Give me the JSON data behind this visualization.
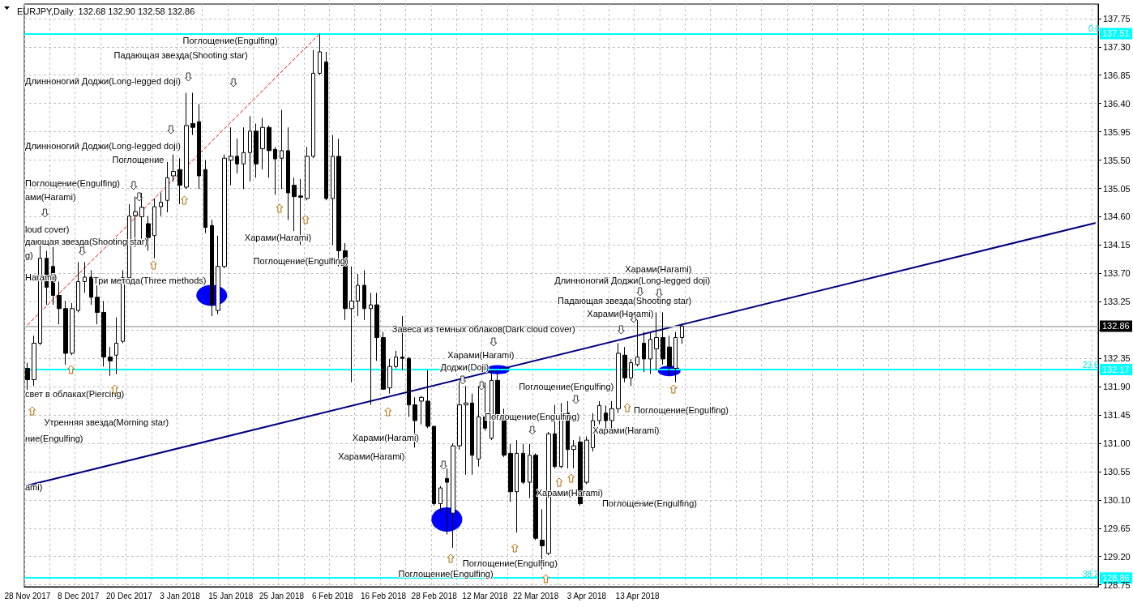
{
  "chart_data": {
    "type": "candlestick",
    "title": "EURJPY,Daily  132.68 132.90 132.58 132.86",
    "categories": [
      "28 Nov 2017",
      null,
      null,
      null,
      null,
      null,
      null,
      null,
      "8 Dec 2017",
      null,
      null,
      null,
      null,
      null,
      null,
      null,
      "20 Dec 2017",
      null,
      null,
      null,
      null,
      null,
      null,
      null,
      "3 Jan 2018",
      null,
      null,
      null,
      null,
      null,
      null,
      null,
      "15 Jan 2018",
      null,
      null,
      null,
      null,
      null,
      null,
      null,
      "25 Jan 2018",
      null,
      null,
      null,
      null,
      null,
      null,
      null,
      "6 Feb 2018",
      null,
      null,
      null,
      null,
      null,
      null,
      null,
      "16 Feb 2018",
      null,
      null,
      null,
      null,
      null,
      null,
      null,
      "28 Feb 2018",
      null,
      null,
      null,
      null,
      null,
      null,
      null,
      "12 Mar 2018",
      null,
      null,
      null,
      null,
      null,
      null,
      null,
      "22 Mar 2018",
      null,
      null,
      null,
      null,
      null,
      null,
      null,
      "3 Apr 2018",
      null,
      null,
      null,
      null,
      null,
      null,
      null,
      "13 Apr 2018",
      null,
      null,
      null,
      null,
      null,
      null,
      null,
      null,
      null,
      null,
      null,
      null,
      null,
      null,
      null,
      null,
      null,
      null,
      null,
      null,
      null,
      null,
      null,
      null,
      null,
      null,
      null,
      null,
      null,
      null,
      null,
      null,
      null,
      null,
      null,
      null,
      null,
      null,
      null,
      null,
      null,
      null,
      null,
      null,
      null,
      null,
      null,
      null,
      null,
      null,
      null,
      null,
      null,
      null,
      null,
      null,
      null,
      null,
      null,
      null,
      null,
      null,
      null,
      null,
      null,
      null,
      null,
      null,
      null,
      null,
      null,
      null
    ],
    "ohlc": [
      [
        132.19,
        132.28,
        131.85,
        132.01
      ],
      [
        132.01,
        132.71,
        131.91,
        132.59
      ],
      [
        132.59,
        134.18,
        132.56,
        133.94
      ],
      [
        133.94,
        134.06,
        133.2,
        133.48
      ],
      [
        133.81,
        134.12,
        133.2,
        133.35
      ],
      [
        133.35,
        133.57,
        132.89,
        133.14
      ],
      [
        133.14,
        133.26,
        132.25,
        132.43
      ],
      [
        132.43,
        133.23,
        132.4,
        133.14
      ],
      [
        133.11,
        133.88,
        133.08,
        133.57
      ],
      [
        133.57,
        133.88,
        133.39,
        133.64
      ],
      [
        133.64,
        133.75,
        133.2,
        133.32
      ],
      [
        133.32,
        133.51,
        132.89,
        133.08
      ],
      [
        133.08,
        133.26,
        132.22,
        132.37
      ],
      [
        132.37,
        132.53,
        132.07,
        132.31
      ],
      [
        132.4,
        133.0,
        132.1,
        132.59
      ],
      [
        132.62,
        133.75,
        132.59,
        133.63
      ],
      [
        133.63,
        134.8,
        133.63,
        134.61
      ],
      [
        134.62,
        134.92,
        134.12,
        134.68
      ],
      [
        134.6,
        134.98,
        134.25,
        134.75
      ],
      [
        134.49,
        134.61,
        134.06,
        134.27
      ],
      [
        134.3,
        134.89,
        133.94,
        134.76
      ],
      [
        134.76,
        134.98,
        134.61,
        134.83
      ],
      [
        134.86,
        135.47,
        134.67,
        135.22
      ],
      [
        135.25,
        135.59,
        135.16,
        135.32
      ],
      [
        135.35,
        135.53,
        134.8,
        135.1
      ],
      [
        135.07,
        136.57,
        135.04,
        136.05
      ],
      [
        136.08,
        136.57,
        135.9,
        136.02
      ],
      [
        136.11,
        136.39,
        135.04,
        135.25
      ],
      [
        135.35,
        135.5,
        134.34,
        134.43
      ],
      [
        134.46,
        134.55,
        133.02,
        133.2
      ],
      [
        133.11,
        134.3,
        133.05,
        133.81
      ],
      [
        133.81,
        135.59,
        133.78,
        135.53
      ],
      [
        135.5,
        136.02,
        135.1,
        135.56
      ],
      [
        135.56,
        135.84,
        135.29,
        135.44
      ],
      [
        135.44,
        136.02,
        135.04,
        135.62
      ],
      [
        135.62,
        136.2,
        135.16,
        135.96
      ],
      [
        135.96,
        136.08,
        135.22,
        135.44
      ],
      [
        135.68,
        136.17,
        135.35,
        136.02
      ],
      [
        136.02,
        136.05,
        135.22,
        135.65
      ],
      [
        135.67,
        135.71,
        134.95,
        135.52
      ],
      [
        135.53,
        136.3,
        135.04,
        135.65
      ],
      [
        135.65,
        136.02,
        134.55,
        134.98
      ],
      [
        135.1,
        135.22,
        134.37,
        134.92
      ],
      [
        134.93,
        135.2,
        134.15,
        134.91
      ],
      [
        134.89,
        135.71,
        134.86,
        135.56
      ],
      [
        135.56,
        137.25,
        135.53,
        136.88
      ],
      [
        136.88,
        137.51,
        136.85,
        137.22
      ],
      [
        137.06,
        137.22,
        134.86,
        134.89
      ],
      [
        134.89,
        135.9,
        134.15,
        135.56
      ],
      [
        135.56,
        135.84,
        133.81,
        134.06
      ],
      [
        134.06,
        134.18,
        132.96,
        133.14
      ],
      [
        133.14,
        133.81,
        131.97,
        133.26
      ],
      [
        133.26,
        133.69,
        133.02,
        133.51
      ],
      [
        133.51,
        133.75,
        132.96,
        133.14
      ],
      [
        133.14,
        133.39,
        131.61,
        133.2
      ],
      [
        133.2,
        133.39,
        132.31,
        132.68
      ],
      [
        132.68,
        132.77,
        131.85,
        131.86
      ],
      [
        131.88,
        132.34,
        131.79,
        132.22
      ],
      [
        132.22,
        132.47,
        132.19,
        132.37
      ],
      [
        132.37,
        133.02,
        132.16,
        132.35
      ],
      [
        132.35,
        132.37,
        131.42,
        131.61
      ],
      [
        131.61,
        131.73,
        130.93,
        131.36
      ],
      [
        131.67,
        131.75,
        131.3,
        131.73
      ],
      [
        131.67,
        132.16,
        131.24,
        131.27
      ],
      [
        131.27,
        131.27,
        130.01,
        130.04
      ],
      [
        130.04,
        130.32,
        129.9,
        130.29
      ],
      [
        130.44,
        130.6,
        129.55,
        130.38
      ],
      [
        129.89,
        131.0,
        129.34,
        130.96
      ],
      [
        130.96,
        131.97,
        130.9,
        131.61
      ],
      [
        131.61,
        131.91,
        130.5,
        131.64
      ],
      [
        131.64,
        131.79,
        130.5,
        130.81
      ],
      [
        130.75,
        131.91,
        130.63,
        131.42
      ],
      [
        131.42,
        131.97,
        131.2,
        131.24
      ],
      [
        131.08,
        132.13,
        131.05,
        132.0
      ],
      [
        132.0,
        132.16,
        131.42,
        131.45
      ],
      [
        131.45,
        131.55,
        130.78,
        130.81
      ],
      [
        130.84,
        130.99,
        130.07,
        130.23
      ],
      [
        130.23,
        131.05,
        129.58,
        130.84
      ],
      [
        130.84,
        130.99,
        130.35,
        130.38
      ],
      [
        130.38,
        130.99,
        130.13,
        130.81
      ],
      [
        130.81,
        130.84,
        129.46,
        129.49
      ],
      [
        129.46,
        129.95,
        129.0,
        129.37
      ],
      [
        129.25,
        131.18,
        129.22,
        131.15
      ],
      [
        131.15,
        131.61,
        130.6,
        130.63
      ],
      [
        130.63,
        131.64,
        130.6,
        131.45
      ],
      [
        131.48,
        131.67,
        130.6,
        130.9
      ],
      [
        130.9,
        131.05,
        130.6,
        130.96
      ],
      [
        131.02,
        131.11,
        130.01,
        130.04
      ],
      [
        130.38,
        131.11,
        130.35,
        131.05
      ],
      [
        130.93,
        131.48,
        130.87,
        131.36
      ],
      [
        131.36,
        131.67,
        131.3,
        131.6
      ],
      [
        131.48,
        131.6,
        131.24,
        131.36
      ],
      [
        131.36,
        131.67,
        131.2,
        131.55
      ],
      [
        131.55,
        132.59,
        131.48,
        132.43
      ],
      [
        132.4,
        132.53,
        131.97,
        132.04
      ],
      [
        132.04,
        132.34,
        131.91,
        132.28
      ],
      [
        132.25,
        132.96,
        132.22,
        132.37
      ],
      [
        132.59,
        132.77,
        132.13,
        132.34
      ],
      [
        132.34,
        132.77,
        132.1,
        132.65
      ],
      [
        132.5,
        133.08,
        132.16,
        132.68
      ],
      [
        132.68,
        133.08,
        132.25,
        132.34
      ],
      [
        132.53,
        132.71,
        132.07,
        132.22
      ],
      [
        132.19,
        132.77,
        131.97,
        132.68
      ],
      [
        132.68,
        132.9,
        132.58,
        132.86
      ],
      null,
      null,
      null,
      null,
      null,
      null,
      null,
      null,
      null,
      null,
      null,
      null,
      null,
      null,
      null,
      null,
      null,
      null,
      null,
      null,
      null,
      null,
      null,
      null,
      null,
      null,
      null,
      null,
      null,
      null,
      null,
      null,
      null,
      null,
      null,
      null,
      null,
      null,
      null,
      null,
      null,
      null,
      null,
      null,
      null,
      null,
      null,
      null,
      null,
      null,
      null,
      null,
      null,
      null,
      null,
      null,
      null,
      null,
      null,
      null,
      null,
      null,
      null,
      null,
      null
    ],
    "series": [
      {
        "type": "line",
        "color": "#000080",
        "line_style": "solid",
        "marker": "none",
        "values": [
          130.33,
          null,
          null,
          null,
          null,
          null,
          null,
          null,
          null,
          null,
          null,
          null,
          null,
          null,
          null,
          null,
          null,
          null,
          null,
          null,
          null,
          null,
          null,
          null,
          null,
          null,
          null,
          null,
          null,
          null,
          null,
          null,
          null,
          null,
          null,
          null,
          null,
          null,
          null,
          null,
          null,
          null,
          null,
          null,
          null,
          null,
          null,
          null,
          null,
          null,
          null,
          null,
          null,
          null,
          null,
          null,
          null,
          null,
          null,
          null,
          null,
          null,
          null,
          null,
          null,
          null,
          null,
          null,
          null,
          null,
          null,
          null,
          null,
          null,
          null,
          null,
          null,
          null,
          null,
          null,
          null,
          null,
          null,
          null,
          null,
          null,
          null,
          null,
          null,
          null,
          null,
          null,
          null,
          null,
          null,
          null,
          null,
          null,
          null,
          null,
          null,
          null,
          null,
          null,
          null,
          null,
          null,
          null,
          null,
          null,
          null,
          null,
          null,
          null,
          null,
          null,
          null,
          null,
          null,
          null,
          null,
          null,
          null,
          null,
          null,
          null,
          null,
          null,
          null,
          null,
          null,
          null,
          null,
          null,
          null,
          null,
          null,
          null,
          null,
          null,
          null,
          null,
          null,
          null,
          null,
          null,
          null,
          null,
          null,
          null,
          null,
          null,
          null,
          null,
          null,
          null,
          null,
          null,
          null,
          null,
          null,
          null,
          null,
          null,
          null,
          null,
          null,
          null,
          134.5
        ]
      },
      {
        "type": "line",
        "color": "#ff0000",
        "line_style": "dashed",
        "marker": "none",
        "values": [
          132.88,
          null,
          null,
          null,
          null,
          null,
          null,
          null,
          null,
          null,
          null,
          null,
          null,
          null,
          null,
          null,
          null,
          null,
          null,
          null,
          null,
          null,
          null,
          null,
          null,
          null,
          null,
          null,
          null,
          null,
          null,
          null,
          null,
          null,
          null,
          null,
          null,
          null,
          null,
          null,
          null,
          null,
          null,
          null,
          null,
          null,
          137.51,
          null,
          null,
          null,
          null,
          null,
          null,
          null,
          null,
          null,
          null,
          null,
          null,
          null,
          null,
          null,
          null,
          null,
          null,
          null,
          null,
          null,
          null,
          null,
          null,
          null,
          null,
          null,
          null,
          null,
          null,
          null,
          null,
          null,
          null,
          null,
          null,
          null,
          null,
          null,
          null,
          null,
          null,
          null,
          null,
          null,
          null,
          null,
          null,
          null,
          null,
          null,
          null,
          null,
          null,
          null,
          null,
          null,
          null,
          null,
          null,
          null,
          null,
          null,
          null,
          null,
          null,
          null,
          null,
          null,
          null,
          null,
          null,
          null,
          null,
          null,
          null,
          null,
          null,
          null,
          null,
          null,
          null,
          null,
          null,
          null,
          null,
          null,
          null,
          null,
          null,
          null,
          null,
          null,
          null,
          null,
          null,
          null,
          null,
          null,
          null,
          null,
          null,
          null,
          null,
          null,
          null,
          null,
          null,
          null,
          null,
          null,
          null,
          null,
          null,
          null,
          null,
          null,
          null,
          null,
          null,
          null,
          null
        ]
      },
      {
        "type": "scatter",
        "color": "#0000ff",
        "sizes": [
          null,
          null,
          null,
          null,
          null,
          null,
          null,
          null,
          null,
          null,
          null,
          null,
          null,
          null,
          null,
          null,
          null,
          null,
          null,
          null,
          null,
          null,
          null,
          null,
          null,
          null,
          null,
          null,
          null,
          0.87,
          null,
          null,
          null,
          null,
          null,
          null,
          null,
          null,
          null,
          null,
          null,
          null,
          null,
          null,
          null,
          null,
          null,
          null,
          null,
          null,
          null,
          null,
          null,
          null,
          null,
          null,
          null,
          null,
          null,
          null,
          null,
          null,
          null,
          null,
          null,
          null,
          1,
          null,
          null,
          null,
          null,
          null,
          null,
          null,
          0.29,
          null,
          null,
          null,
          null,
          null,
          null,
          null,
          null,
          null,
          null,
          null,
          null,
          null,
          null,
          null,
          null,
          null,
          null,
          null,
          null,
          null,
          null,
          null,
          null,
          null,
          null,
          0.32,
          null,
          null,
          null,
          null,
          null,
          null,
          null,
          null,
          null,
          null,
          null,
          null,
          null,
          null,
          null,
          null,
          null,
          null,
          null,
          null,
          null,
          null,
          null,
          null,
          null,
          null,
          null,
          null,
          null,
          null,
          null,
          null,
          null,
          null,
          null,
          null,
          null,
          null,
          null,
          null,
          null,
          null,
          null,
          null,
          null,
          null,
          null,
          null,
          null,
          null,
          null,
          null,
          null,
          null,
          null,
          null,
          null,
          null,
          null,
          null,
          null,
          null,
          null,
          null,
          null,
          null,
          null
        ],
        "values": [
          null,
          null,
          null,
          null,
          null,
          null,
          null,
          null,
          null,
          null,
          null,
          null,
          null,
          null,
          null,
          null,
          null,
          null,
          null,
          null,
          null,
          null,
          null,
          null,
          null,
          null,
          null,
          null,
          null,
          133.35,
          null,
          null,
          null,
          null,
          null,
          null,
          null,
          null,
          null,
          null,
          null,
          null,
          null,
          null,
          null,
          null,
          null,
          null,
          null,
          null,
          null,
          null,
          null,
          null,
          null,
          null,
          null,
          null,
          null,
          null,
          null,
          null,
          null,
          null,
          null,
          null,
          129.79,
          null,
          null,
          null,
          null,
          null,
          null,
          null,
          132.17,
          null,
          null,
          null,
          null,
          null,
          null,
          null,
          null,
          null,
          null,
          null,
          null,
          null,
          null,
          null,
          null,
          null,
          null,
          null,
          null,
          null,
          null,
          null,
          null,
          null,
          null,
          132.15,
          null,
          null,
          null,
          null,
          null,
          null,
          null,
          null,
          null,
          null,
          null,
          null,
          null,
          null,
          null,
          null,
          null,
          null,
          null,
          null,
          null,
          null,
          null,
          null,
          null,
          null,
          null,
          null,
          null,
          null,
          null,
          null,
          null,
          null,
          null,
          null,
          null,
          null,
          null,
          null,
          null,
          null,
          null,
          null,
          null,
          null,
          null,
          null,
          null,
          null,
          null,
          null,
          null,
          null,
          null,
          null,
          null,
          null,
          null,
          null,
          null,
          null,
          null,
          null,
          null,
          null,
          null
        ]
      }
    ],
    "ylim": [
      128.72,
      137.98
    ],
    "yticks": [
      128.75,
      {
        "value": 129.2,
        "label": "129.20"
      },
      129.65,
      {
        "value": 130.1,
        "label": "130.10"
      },
      130.55,
      {
        "value": 131,
        "label": "131.00"
      },
      131.45,
      {
        "value": 131.9,
        "label": "131.90"
      },
      132.35,
      {
        "value": 132.8,
        "label": null
      },
      133.25,
      {
        "value": 133.7,
        "label": "133.70"
      },
      134.15,
      {
        "value": 134.6,
        "label": "134.60"
      },
      135.05,
      {
        "value": 135.5,
        "label": "135.50"
      },
      135.95,
      {
        "value": 136.4,
        "label": "136.40"
      },
      136.85,
      {
        "value": 137.3,
        "label": "137.30"
      },
      137.75
    ],
    "ref_lines": [
      {
        "axis": "y",
        "value": 137.51,
        "label": "137.51",
        "color": "#00ffff"
      },
      {
        "axis": "y",
        "value": 132.17,
        "label": "132.17",
        "color": "#00ffff"
      },
      {
        "axis": "y",
        "value": 128.86,
        "label": "128.86",
        "color": "#00ffff"
      },
      {
        "axis": "y",
        "value": 132.86,
        "label": "132.86",
        "color": "#c0c0c0"
      }
    ],
    "grid": true,
    "annotations": [
      "Поглощение(Engulfing)",
      "Падающая звезда(Shooting star)",
      "Длинноногий Доджи(Long-legged doji)",
      "Поглощение",
      "Длинноногий Доджи(Long-legged doji)",
      "ами(Harami)",
      "Поглощение(Engulfing)",
      "loud cover)",
      "дающая звезда(Shooting star)",
      "g)",
      "Harami)",
      "Три метода(Three methods)",
      "Харами(Harami)",
      "Поглощение(Engulfing)",
      "свет в облаках(Piercing)",
      "Утренняя звезда(Morning star)",
      "ние(Engulfing)",
      "ami)",
      "Завеса из темных облаков(Dark cloud cover)",
      "Харами(Harami)",
      "Доджи(Doji)",
      "Харами(Harami)",
      "Харами(Harami)",
      "Поглощение(Engulfing)",
      "Поглощение(Engulfing)",
      "Поглощение(Engulfing)",
      "Поглощение(Engulfing)",
      "Харами(Harami)",
      "Поглощение(Engulfing)",
      "Харами(Harami)",
      "Поглощение(Engulfing)",
      "Харами(Harami)",
      "Длинноногий Доджи(Long-legged doji)",
      "Падающая звезда(Shooting star)",
      "Харами(Harami)",
      "0.0",
      "23.6",
      "38.2"
    ]
  }
}
